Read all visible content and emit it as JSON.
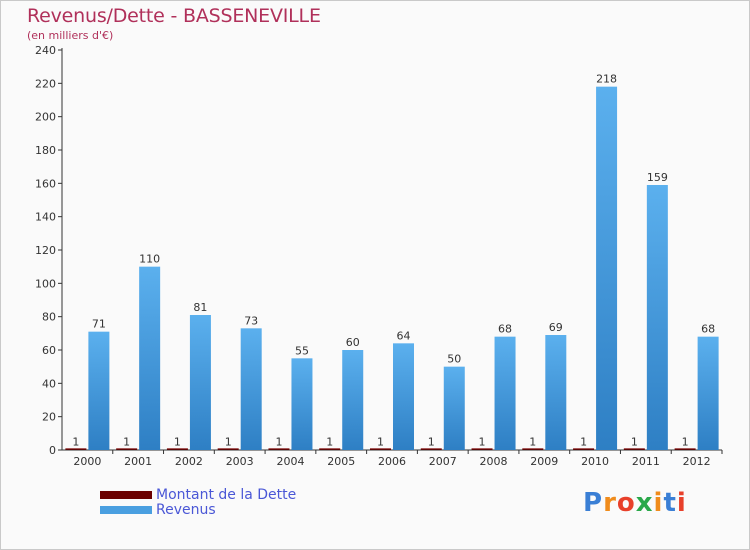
{
  "header": {
    "title": "Revenus/Dette - BASSENEVILLE",
    "subtitle": "(en milliers d'€)"
  },
  "chart_data": {
    "type": "bar",
    "title": "Revenus/Dette - BASSENEVILLE",
    "subtitle": "(en milliers d'€)",
    "xlabel": "",
    "ylabel": "",
    "ylim": [
      0,
      240
    ],
    "yticks": [
      0,
      20,
      40,
      60,
      80,
      100,
      120,
      140,
      160,
      180,
      200,
      220,
      240
    ],
    "grid": false,
    "legend_position": "bottom-left",
    "categories": [
      "2000",
      "2001",
      "2002",
      "2003",
      "2004",
      "2005",
      "2006",
      "2007",
      "2008",
      "2009",
      "2010",
      "2011",
      "2012"
    ],
    "series": [
      {
        "name": "Montant de la Dette",
        "color": "#6b0000",
        "values": [
          1,
          1,
          1,
          1,
          1,
          1,
          1,
          1,
          1,
          1,
          1,
          1,
          1
        ]
      },
      {
        "name": "Revenus",
        "color": "#4a9fe0",
        "values": [
          71,
          110,
          81,
          73,
          55,
          60,
          64,
          50,
          68,
          69,
          218,
          159,
          68
        ]
      }
    ]
  },
  "legend": {
    "items": [
      {
        "label": "Montant de la Dette",
        "color": "#6b0000"
      },
      {
        "label": "Revenus",
        "color": "#4a9fe0"
      }
    ]
  },
  "logo": {
    "text": "Proxiti",
    "letters": [
      "P",
      "r",
      "o",
      "x",
      "i",
      "t",
      "i"
    ],
    "colors": [
      "#3a7fd5",
      "#f08c1c",
      "#e8402a",
      "#2aa84a",
      "#f08c1c",
      "#3a7fd5",
      "#e8402a"
    ]
  }
}
